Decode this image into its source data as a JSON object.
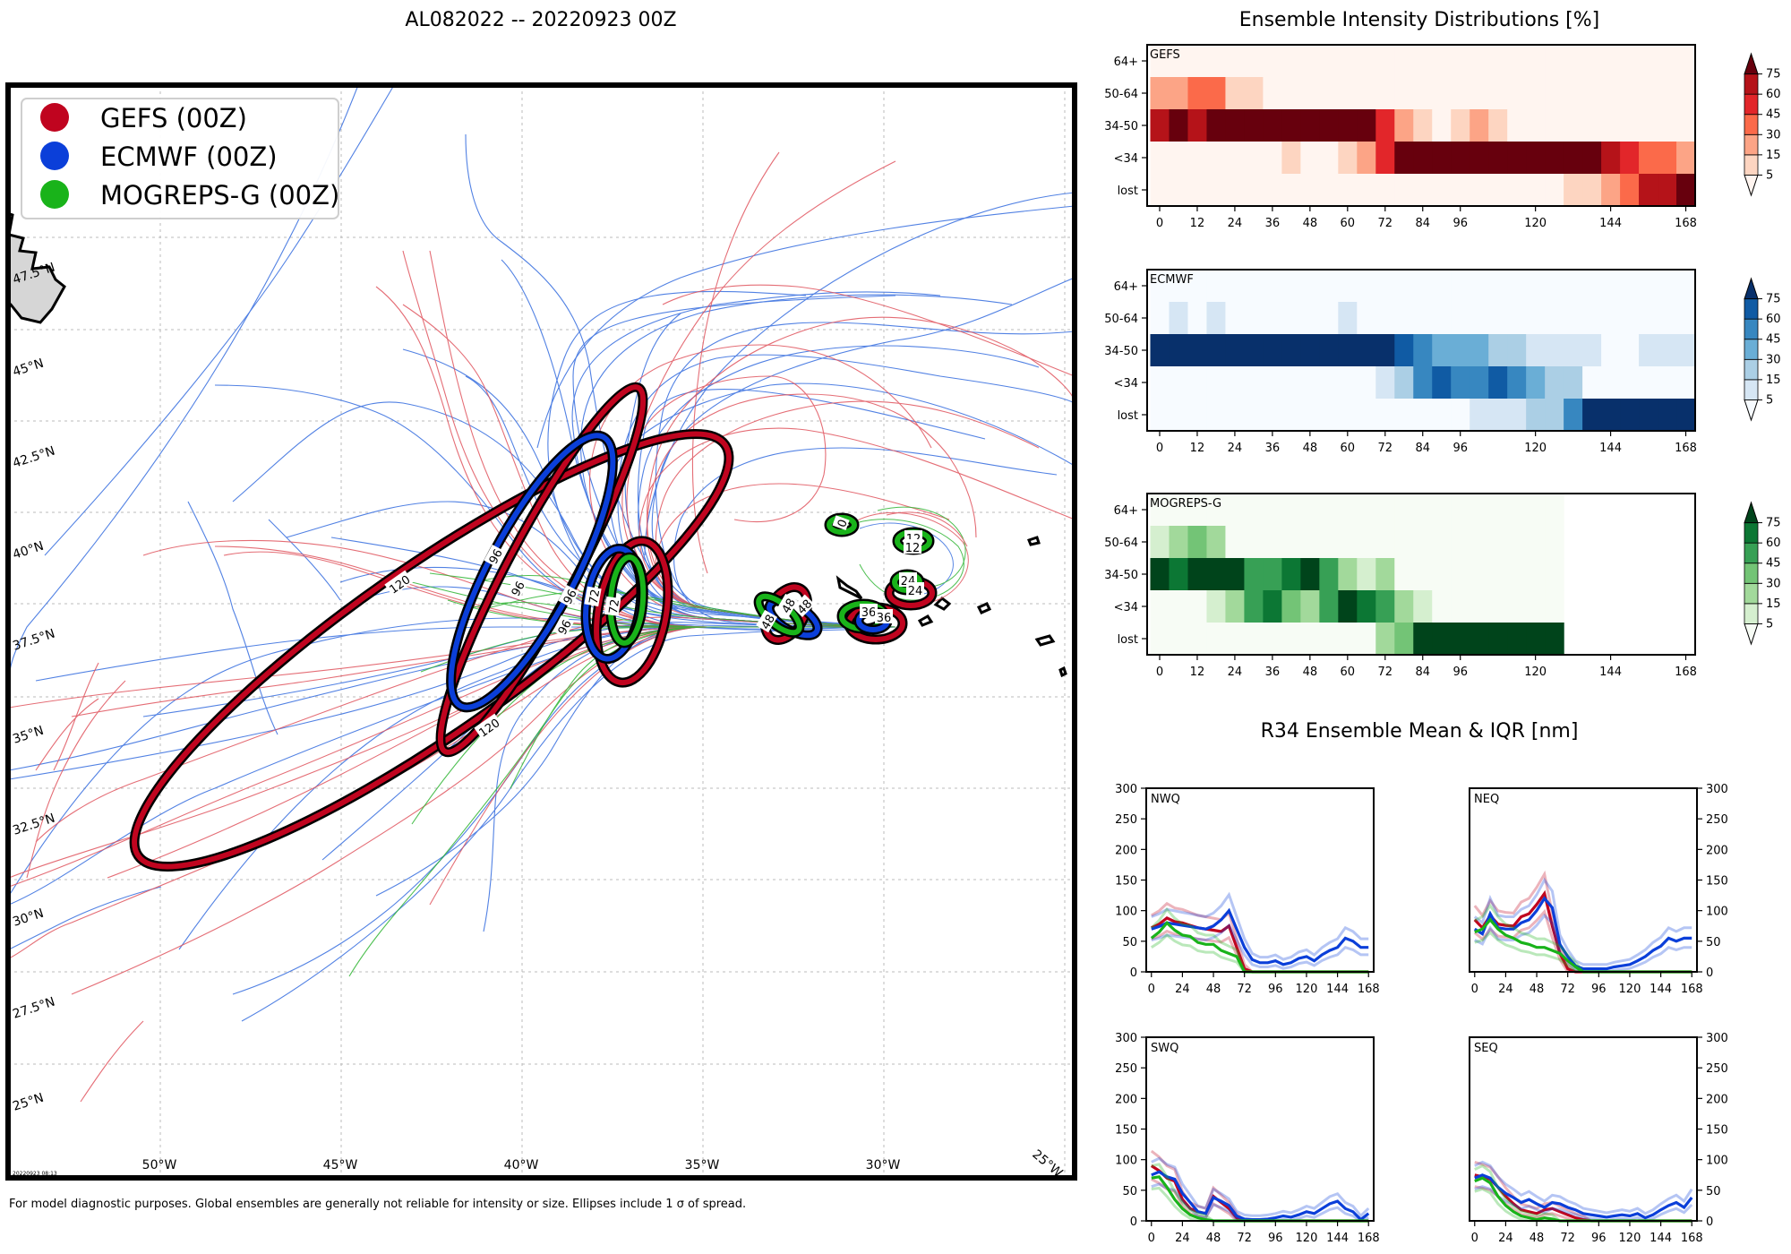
{
  "map": {
    "title": "AL082022 -- 20220923 00Z",
    "legend": [
      {
        "label": "GEFS (00Z)",
        "color": "#c0041f"
      },
      {
        "label": "ECMWF (00Z)",
        "color": "#0b3fd9"
      },
      {
        "label": "MOGREPS-G (00Z)",
        "color": "#19b31a"
      }
    ],
    "lon_labels": [
      "50°W",
      "45°W",
      "40°W",
      "35°W",
      "30°W",
      "25°W"
    ],
    "lat_labels": [
      "47.5°N",
      "45°N",
      "42.5°N",
      "40°N",
      "37.5°N",
      "35°N",
      "32.5°N",
      "30°N",
      "27.5°N",
      "25°N"
    ],
    "stamp": "20220923 08:13",
    "footnote": "For model diagnostic purposes. Global ensembles are generally not reliable for intensity or size. Ellipses include 1 σ of spread."
  },
  "chart_data": [
    {
      "type": "heatmap",
      "title": "Ensemble Intensity Distributions [%]",
      "panel": "GEFS",
      "rows": [
        "64+",
        "50-64",
        "34-50",
        "<34",
        "lost"
      ],
      "x_ticks": [
        0,
        12,
        24,
        36,
        48,
        60,
        72,
        84,
        96,
        120,
        144,
        168
      ],
      "colorbar_ticks": [
        5,
        15,
        30,
        45,
        60,
        75
      ],
      "colors": [
        "#fff5f0",
        "#fdd5c1",
        "#fca486",
        "#fb6a4a",
        "#e2262a",
        "#b51319",
        "#67000d"
      ],
      "cells": [
        [
          0,
          0,
          0,
          0,
          0,
          0,
          0,
          0,
          0,
          0,
          0,
          0,
          0,
          0,
          0,
          0,
          0,
          0,
          0,
          0,
          0,
          0,
          0,
          0,
          0,
          0,
          0,
          0,
          0
        ],
        [
          2,
          2,
          3,
          3,
          1,
          1,
          0,
          0,
          0,
          0,
          0,
          0,
          0,
          0,
          0,
          0,
          0,
          0,
          0,
          0,
          0,
          0,
          0,
          0,
          0,
          0,
          0,
          0,
          0
        ],
        [
          5,
          6,
          5,
          6,
          6,
          6,
          6,
          6,
          6,
          6,
          6,
          6,
          4,
          2,
          1,
          0,
          1,
          2,
          1,
          0,
          0,
          0,
          0,
          0,
          0,
          0,
          0,
          0,
          0
        ],
        [
          0,
          0,
          0,
          0,
          0,
          0,
          0,
          1,
          0,
          0,
          1,
          2,
          4,
          6,
          6,
          6,
          6,
          6,
          6,
          6,
          6,
          6,
          6,
          6,
          5,
          4,
          3,
          3,
          2
        ],
        [
          0,
          0,
          0,
          0,
          0,
          0,
          0,
          0,
          0,
          0,
          0,
          0,
          0,
          0,
          0,
          0,
          0,
          0,
          0,
          0,
          0,
          0,
          1,
          1,
          2,
          3,
          5,
          5,
          6
        ]
      ]
    },
    {
      "type": "heatmap",
      "panel": "ECMWF",
      "rows": [
        "64+",
        "50-64",
        "34-50",
        "<34",
        "lost"
      ],
      "x_ticks": [
        0,
        12,
        24,
        36,
        48,
        60,
        72,
        84,
        96,
        120,
        144,
        168
      ],
      "colorbar_ticks": [
        5,
        15,
        30,
        45,
        60,
        75
      ],
      "colors": [
        "#f7fbff",
        "#d6e6f4",
        "#abcfe5",
        "#6aaed6",
        "#3787c0",
        "#105ba4",
        "#08306b"
      ],
      "cells": [
        [
          0,
          0,
          0,
          0,
          0,
          0,
          0,
          0,
          0,
          0,
          0,
          0,
          0,
          0,
          0,
          0,
          0,
          0,
          0,
          0,
          0,
          0,
          0,
          0,
          0,
          0,
          0,
          0,
          0
        ],
        [
          0,
          1,
          0,
          1,
          0,
          0,
          0,
          0,
          0,
          0,
          1,
          0,
          0,
          0,
          0,
          0,
          0,
          0,
          0,
          0,
          0,
          0,
          0,
          0,
          0,
          0,
          0,
          0,
          0
        ],
        [
          6,
          6,
          6,
          6,
          6,
          6,
          6,
          6,
          6,
          6,
          6,
          6,
          6,
          5,
          4,
          3,
          3,
          3,
          2,
          2,
          1,
          1,
          1,
          1,
          0,
          0,
          1,
          1,
          1
        ],
        [
          0,
          0,
          0,
          0,
          0,
          0,
          0,
          0,
          0,
          0,
          0,
          0,
          1,
          2,
          4,
          5,
          4,
          4,
          5,
          4,
          3,
          2,
          2,
          0,
          0,
          0,
          0,
          0,
          0
        ],
        [
          0,
          0,
          0,
          0,
          0,
          0,
          0,
          0,
          0,
          0,
          0,
          0,
          0,
          0,
          0,
          0,
          0,
          1,
          1,
          1,
          2,
          2,
          4,
          6,
          6,
          6,
          6,
          6,
          6
        ]
      ]
    },
    {
      "type": "heatmap",
      "panel": "MOGREPS-G",
      "rows": [
        "64+",
        "50-64",
        "34-50",
        "<34",
        "lost"
      ],
      "x_ticks": [
        0,
        12,
        24,
        36,
        48,
        60,
        72,
        84,
        96,
        120,
        144,
        168
      ],
      "colorbar_ticks": [
        5,
        15,
        30,
        45,
        60,
        75
      ],
      "colors": [
        "#f7fcf5",
        "#d5efcf",
        "#a2d99b",
        "#73c476",
        "#37a055",
        "#0c7734",
        "#00441b"
      ],
      "cells": [
        [
          0,
          0,
          0,
          0,
          0,
          0,
          0,
          0,
          0,
          0,
          0,
          0,
          0,
          0,
          0,
          0,
          0,
          0,
          0,
          0,
          0,
          0
        ],
        [
          1,
          2,
          3,
          2,
          0,
          0,
          0,
          0,
          0,
          0,
          0,
          0,
          0,
          0,
          0,
          0,
          0,
          0,
          0,
          0,
          0,
          0
        ],
        [
          6,
          5,
          6,
          6,
          6,
          4,
          4,
          5,
          6,
          4,
          2,
          1,
          2,
          0,
          0,
          0,
          0,
          0,
          0,
          0,
          0,
          0
        ],
        [
          0,
          0,
          0,
          1,
          2,
          4,
          5,
          3,
          2,
          4,
          6,
          5,
          4,
          2,
          1,
          0,
          0,
          0,
          0,
          0,
          0,
          0
        ],
        [
          0,
          0,
          0,
          0,
          0,
          0,
          0,
          0,
          0,
          0,
          0,
          0,
          2,
          3,
          6,
          6,
          6,
          6,
          6,
          6,
          6,
          6
        ]
      ]
    },
    {
      "type": "line",
      "title": "R34 Ensemble Mean & IQR [nm]",
      "panels": [
        "NWQ",
        "NEQ",
        "SWQ",
        "SEQ"
      ],
      "x_ticks": [
        0,
        24,
        48,
        72,
        96,
        120,
        144,
        168
      ],
      "y_ticks": [
        0,
        50,
        100,
        150,
        200,
        250,
        300
      ],
      "ylim": [
        0,
        300
      ],
      "xlim": [
        -4,
        172
      ],
      "x": [
        0,
        6,
        12,
        18,
        24,
        30,
        36,
        42,
        48,
        54,
        60,
        66,
        72,
        78,
        84,
        90,
        96,
        102,
        108,
        114,
        120,
        126,
        132,
        138,
        144,
        150,
        156,
        162,
        168
      ],
      "series": {
        "NWQ": [
          {
            "name": "GEFS",
            "color": "#c0041f",
            "values": [
              72,
              78,
              88,
              82,
              80,
              76,
              72,
              70,
              68,
              66,
              75,
              40,
              5,
              0,
              0,
              0,
              0,
              0,
              0,
              0,
              0,
              0,
              0,
              0,
              0,
              0,
              0,
              0,
              0
            ]
          },
          {
            "name": "ECMWF",
            "color": "#0b3fd9",
            "values": [
              70,
              74,
              80,
              78,
              76,
              74,
              72,
              70,
              75,
              85,
              100,
              70,
              40,
              20,
              15,
              15,
              18,
              12,
              15,
              22,
              25,
              18,
              28,
              35,
              40,
              55,
              50,
              40,
              40
            ]
          },
          {
            "name": "MOGREPS-G",
            "color": "#19b31a",
            "values": [
              55,
              65,
              80,
              68,
              60,
              58,
              48,
              45,
              45,
              35,
              30,
              25,
              0,
              0,
              0,
              0,
              0,
              0,
              0,
              0,
              0,
              0,
              0,
              0,
              0,
              0,
              0,
              0,
              0
            ]
          }
        ],
        "NEQ": [
          {
            "name": "GEFS",
            "color": "#c0041f",
            "values": [
              85,
              72,
              92,
              78,
              76,
              75,
              90,
              95,
              110,
              128,
              75,
              30,
              5,
              0,
              0,
              0,
              0,
              0,
              0,
              0,
              0,
              0,
              0,
              0,
              0,
              0,
              0,
              0,
              0
            ]
          },
          {
            "name": "ECMWF",
            "color": "#0b3fd9",
            "values": [
              70,
              62,
              95,
              72,
              70,
              70,
              80,
              85,
              100,
              120,
              105,
              45,
              25,
              10,
              5,
              5,
              5,
              5,
              8,
              10,
              12,
              18,
              25,
              35,
              42,
              55,
              50,
              55,
              55
            ]
          },
          {
            "name": "MOGREPS-G",
            "color": "#19b31a",
            "values": [
              65,
              70,
              85,
              70,
              60,
              55,
              48,
              45,
              40,
              40,
              35,
              30,
              18,
              8,
              0,
              0,
              0,
              0,
              0,
              0,
              0,
              0,
              0,
              0,
              0,
              0,
              0,
              0,
              0
            ]
          }
        ],
        "SWQ": [
          {
            "name": "GEFS",
            "color": "#c0041f",
            "values": [
              90,
              82,
              70,
              65,
              35,
              20,
              15,
              12,
              40,
              30,
              20,
              5,
              0,
              0,
              0,
              0,
              0,
              0,
              0,
              0,
              0,
              0,
              0,
              0,
              0,
              0,
              0,
              0,
              0
            ]
          },
          {
            "name": "ECMWF",
            "color": "#0b3fd9",
            "values": [
              75,
              80,
              72,
              68,
              45,
              30,
              15,
              12,
              38,
              32,
              25,
              8,
              3,
              2,
              2,
              3,
              5,
              8,
              6,
              10,
              15,
              12,
              20,
              28,
              32,
              20,
              15,
              2,
              12
            ]
          },
          {
            "name": "MOGREPS-G",
            "color": "#19b31a",
            "values": [
              70,
              72,
              55,
              35,
              20,
              10,
              5,
              2,
              0,
              0,
              0,
              0,
              0,
              0,
              0,
              0,
              0,
              0,
              0,
              0,
              0,
              0,
              0,
              0,
              0,
              0,
              0,
              0,
              0
            ]
          }
        ],
        "SEQ": [
          {
            "name": "GEFS",
            "color": "#c0041f",
            "values": [
              75,
              72,
              68,
              55,
              40,
              28,
              18,
              15,
              12,
              18,
              20,
              15,
              10,
              5,
              2,
              0,
              0,
              0,
              0,
              0,
              0,
              0,
              0,
              0,
              0,
              0,
              0,
              0,
              0
            ]
          },
          {
            "name": "ECMWF",
            "color": "#0b3fd9",
            "values": [
              70,
              75,
              70,
              55,
              45,
              38,
              30,
              35,
              28,
              22,
              30,
              28,
              22,
              18,
              12,
              10,
              8,
              6,
              8,
              10,
              8,
              12,
              5,
              10,
              18,
              25,
              30,
              22,
              38
            ]
          },
          {
            "name": "MOGREPS-G",
            "color": "#19b31a",
            "values": [
              65,
              70,
              62,
              40,
              25,
              15,
              8,
              5,
              2,
              5,
              3,
              0,
              0,
              0,
              0,
              0,
              0,
              0,
              0,
              0,
              0,
              0,
              0,
              0,
              0,
              0,
              0,
              0,
              0
            ]
          }
        ]
      }
    }
  ]
}
